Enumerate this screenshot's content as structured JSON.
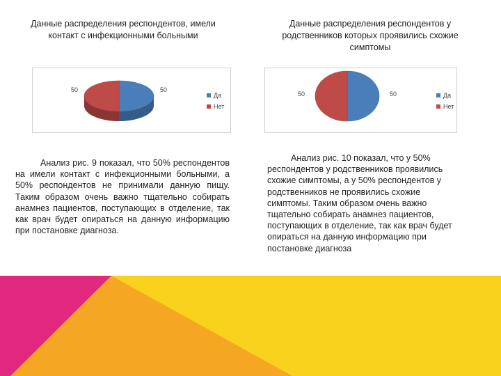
{
  "left": {
    "caption": "Данные распределения респондентов, имели контакт с инфекционными больными",
    "text": "Анализ рис. 9 показал, что 50% респондентов на имели контакт с инфекционными больными, а 50% респондентов не принимали данную пищу. Таким образом очень важно тщательно собирать анамнез пациентов, поступающих в отделение, так как врач будет опираться на данную информацию при постановке диагноза."
  },
  "right": {
    "caption": "Данные распределения респондентов у родственников которых проявились схожие симптомы",
    "text": "Анализ рис. 10 показал, что у 50% респондентов у родственников проявились схожие симптомы, а у 50% респондентов у родственников не проявились схожие симптомы. Таким образом очень важно тщательно собирать анамнез пациентов, поступающих в отделение, так как врач будет опираться на данную информацию при постановке диагноза"
  },
  "colors": {
    "yes": "#4a7ebb",
    "no": "#be4b48",
    "magenta": "#e0287e",
    "orange": "#f5a623",
    "yellow": "#f8d21c"
  },
  "chart_data": [
    {
      "type": "pie",
      "style": "3d",
      "categories": [
        "Да",
        "Нет"
      ],
      "values": [
        50,
        50
      ],
      "data_labels": [
        "50",
        "50"
      ],
      "legend": "right"
    },
    {
      "type": "pie",
      "style": "flat",
      "categories": [
        "Да",
        "Нет"
      ],
      "values": [
        50,
        50
      ],
      "data_labels": [
        "50",
        "50"
      ],
      "legend": "right"
    }
  ]
}
